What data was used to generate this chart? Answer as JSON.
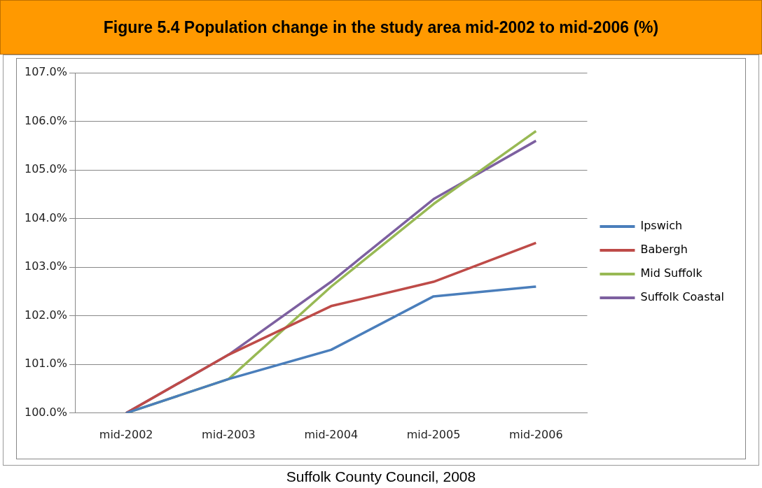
{
  "chart_data": {
    "type": "line",
    "title": "Figure 5.4 Population change in the study area mid-2002 to mid-2006 (%)",
    "categories": [
      "mid-2002",
      "mid-2003",
      "mid-2004",
      "mid-2005",
      "mid-2006"
    ],
    "series": [
      {
        "name": "Ipswich",
        "color": "#4a7ebb",
        "values": [
          100.0,
          100.7,
          101.3,
          102.4,
          102.6
        ]
      },
      {
        "name": "Babergh",
        "color": "#be4b48",
        "values": [
          100.0,
          101.2,
          102.2,
          102.7,
          103.5
        ]
      },
      {
        "name": "Mid Suffolk",
        "color": "#98b954",
        "values": [
          100.0,
          100.7,
          102.6,
          104.3,
          105.8
        ]
      },
      {
        "name": "Suffolk Coastal",
        "color": "#7d60a0",
        "values": [
          100.0,
          101.2,
          102.7,
          104.4,
          105.6
        ]
      }
    ],
    "ylim": [
      100,
      107
    ],
    "yticks": [
      {
        "value": 100,
        "label": "100.0%"
      },
      {
        "value": 101,
        "label": "101.0%"
      },
      {
        "value": 102,
        "label": "102.0%"
      },
      {
        "value": 103,
        "label": "103.0%"
      },
      {
        "value": 104,
        "label": "104.0%"
      },
      {
        "value": 105,
        "label": "105.0%"
      },
      {
        "value": 106,
        "label": "106.0%"
      },
      {
        "value": 107,
        "label": "107.0%"
      }
    ],
    "grid": "y",
    "legend": "right",
    "marker": "none",
    "line_style": "solid",
    "annotations": [
      "Suffolk County Council, 2008"
    ]
  }
}
